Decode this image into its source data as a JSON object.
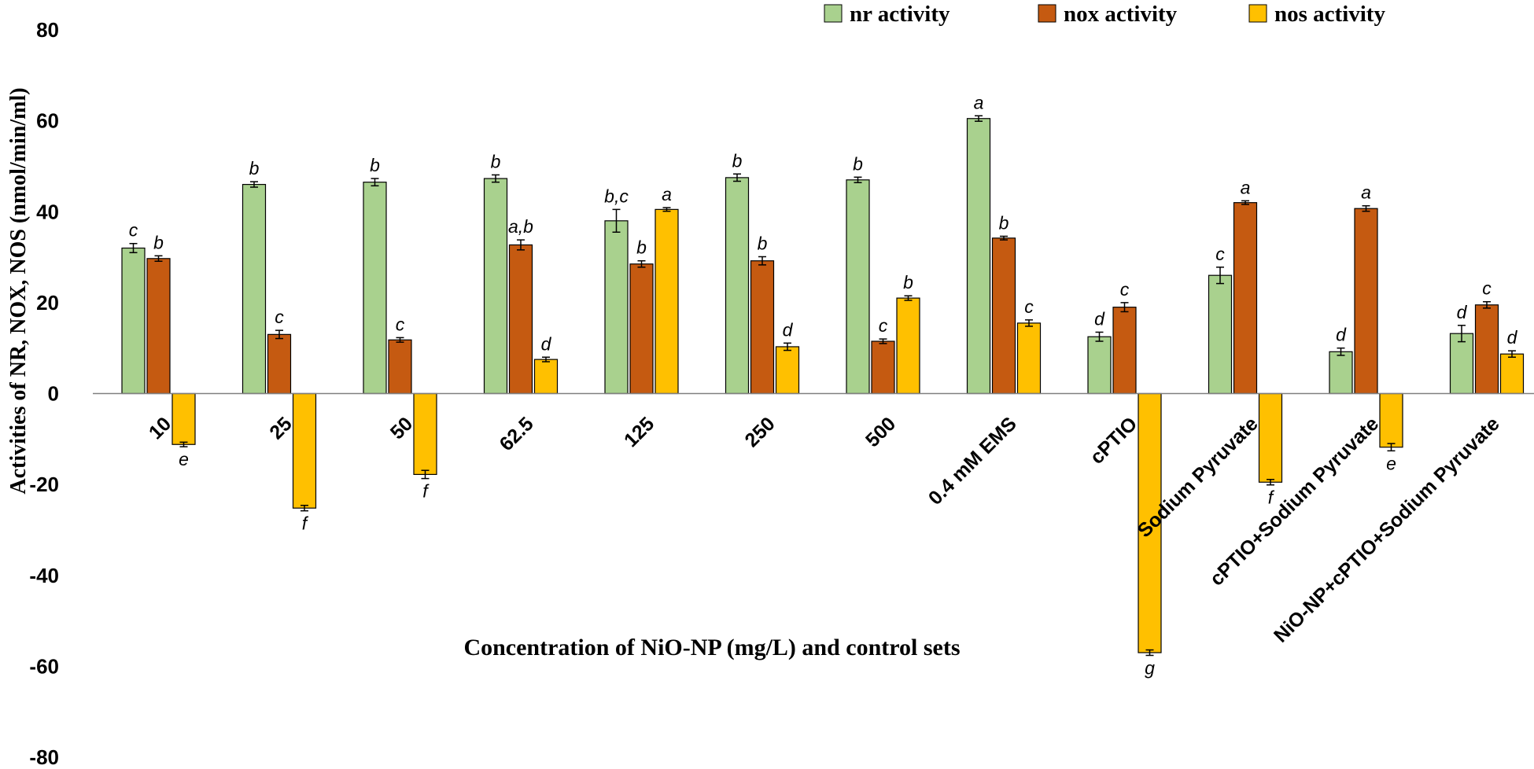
{
  "chart_data": {
    "type": "bar",
    "title": "",
    "xlabel": "Concentration of NiO-NP (mg/L) and control sets",
    "ylabel": "Activities of NR, NOX, NOS (nmol/min/ml)",
    "ylim": [
      -80,
      80
    ],
    "yticks": [
      "80",
      "60",
      "40",
      "20",
      "0",
      "-20",
      "-40",
      "-60",
      "-80"
    ],
    "legend_position": "top-right",
    "categories": [
      "10",
      "25",
      "50",
      "62.5",
      "125",
      "250",
      "500",
      "0.4 mM EMS",
      "cPTIO",
      "Sodium Pyruvate",
      "cPTIO+Sodium Pyruvate",
      "NiO-NP+cPTIO+Sodium Pyruvate"
    ],
    "series": [
      {
        "name": "nr activity",
        "color": "#a9d18e",
        "values": [
          32,
          46,
          46.5,
          47.3,
          38,
          47.5,
          47,
          60.5,
          12.5,
          26,
          9.2,
          13.2
        ],
        "errors": [
          1,
          0.6,
          0.8,
          0.8,
          2.5,
          0.8,
          0.6,
          0.6,
          1,
          1.8,
          0.8,
          1.8
        ],
        "labels": [
          "c",
          "b",
          "b",
          "b",
          "b,c",
          "b",
          "b",
          "a",
          "d",
          "c",
          "d",
          "d"
        ]
      },
      {
        "name": "nox activity",
        "color": "#c55a11",
        "values": [
          29.7,
          13,
          11.8,
          32.7,
          28.5,
          29.2,
          11.5,
          34.2,
          19,
          42,
          40.7,
          19.5
        ],
        "errors": [
          0.6,
          0.9,
          0.5,
          1.1,
          0.7,
          0.9,
          0.5,
          0.4,
          1,
          0.4,
          0.6,
          0.7
        ],
        "labels": [
          "b",
          "c",
          "c",
          "a,b",
          "b",
          "b",
          "c",
          "b",
          "c",
          "a",
          "a",
          "c"
        ]
      },
      {
        "name": "nos activity",
        "color": "#ffc000",
        "values": [
          -11.2,
          -25.2,
          -17.8,
          7.5,
          40.5,
          10.3,
          21,
          15.5,
          -57,
          -19.5,
          -11.8,
          8.7
        ],
        "errors": [
          0.5,
          0.6,
          0.9,
          0.5,
          0.4,
          0.8,
          0.5,
          0.7,
          0.6,
          0.6,
          0.8,
          0.7
        ],
        "labels": [
          "e",
          "f",
          "f",
          "d",
          "a",
          "d",
          "b",
          "c",
          "g",
          "f",
          "e",
          "d"
        ]
      }
    ]
  }
}
